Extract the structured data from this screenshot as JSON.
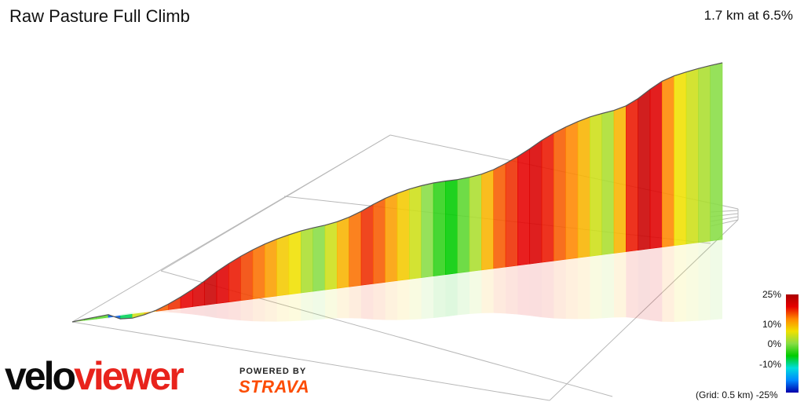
{
  "header": {
    "title": "Raw Pasture Full Climb",
    "summary": "1.7 km at 6.5%"
  },
  "legend": {
    "ticks": [
      "25%",
      "10%",
      "0%",
      "-10%",
      "-25%"
    ],
    "grid_note": "(Grid: 0.5 km)",
    "scale_colors": [
      "#aa0000",
      "#e60000",
      "#ff8800",
      "#f0e000",
      "#88dd44",
      "#00cc00",
      "#00dddd",
      "#0088ff",
      "#0000aa"
    ]
  },
  "branding": {
    "logo_part_a": "velo",
    "logo_part_b": "viewer",
    "powered_by": "POWERED BY",
    "strava": "STRAVA"
  },
  "chart_data": {
    "type": "area",
    "title": "Raw Pasture Full Climb",
    "distance_km": 1.7,
    "avg_gradient_pct": 6.5,
    "color_scale_pct": [
      -25,
      25
    ],
    "grid_spacing_km": 0.5,
    "segments": [
      {
        "grade": 3
      },
      {
        "grade": 2
      },
      {
        "grade": 2
      },
      {
        "grade": -15
      },
      {
        "grade": -2
      },
      {
        "grade": 5
      },
      {
        "grade": 8
      },
      {
        "grade": 12
      },
      {
        "grade": 14
      },
      {
        "grade": 16
      },
      {
        "grade": 18
      },
      {
        "grade": 20
      },
      {
        "grade": 17
      },
      {
        "grade": 15
      },
      {
        "grade": 13
      },
      {
        "grade": 11
      },
      {
        "grade": 9
      },
      {
        "grade": 7
      },
      {
        "grade": 6
      },
      {
        "grade": 4
      },
      {
        "grade": 3
      },
      {
        "grade": 5
      },
      {
        "grade": 8
      },
      {
        "grade": 11
      },
      {
        "grade": 14
      },
      {
        "grade": 12
      },
      {
        "grade": 9
      },
      {
        "grade": 7
      },
      {
        "grade": 5
      },
      {
        "grade": 3
      },
      {
        "grade": 1
      },
      {
        "grade": 0
      },
      {
        "grade": 2
      },
      {
        "grade": 4
      },
      {
        "grade": 8
      },
      {
        "grade": 12
      },
      {
        "grade": 14
      },
      {
        "grade": 16
      },
      {
        "grade": 18
      },
      {
        "grade": 15
      },
      {
        "grade": 12
      },
      {
        "grade": 10
      },
      {
        "grade": 8
      },
      {
        "grade": 5
      },
      {
        "grade": 4
      },
      {
        "grade": 8
      },
      {
        "grade": 15
      },
      {
        "grade": 20
      },
      {
        "grade": 17
      },
      {
        "grade": 10
      },
      {
        "grade": 6
      },
      {
        "grade": 5
      },
      {
        "grade": 4
      },
      {
        "grade": 3
      }
    ]
  }
}
